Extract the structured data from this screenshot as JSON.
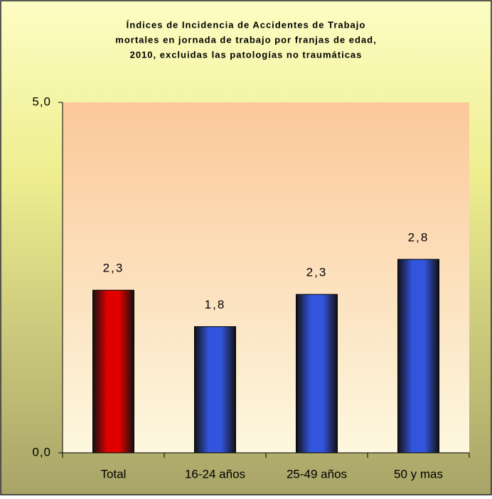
{
  "chart_data": {
    "type": "bar",
    "title": [
      "Índices de Incidencia de Accidentes de Trabajo",
      "mortales en jornada de trabajo por franjas de edad,",
      "2010, excluidas las patologías no traumáticas"
    ],
    "categories": [
      "Total",
      "16-24 años",
      "25-49 años",
      "50 y mas"
    ],
    "values": [
      2.32,
      1.8,
      2.26,
      2.76
    ],
    "value_labels": [
      "2,3",
      "1,8",
      "2,3",
      "2,8"
    ],
    "colors": [
      "#e00000",
      "#3355dd",
      "#3355dd",
      "#3355dd"
    ],
    "ylim": [
      0,
      5
    ],
    "yticks": [
      {
        "value": 0,
        "label": "0,0"
      },
      {
        "value": 5,
        "label": "5,0"
      }
    ]
  }
}
